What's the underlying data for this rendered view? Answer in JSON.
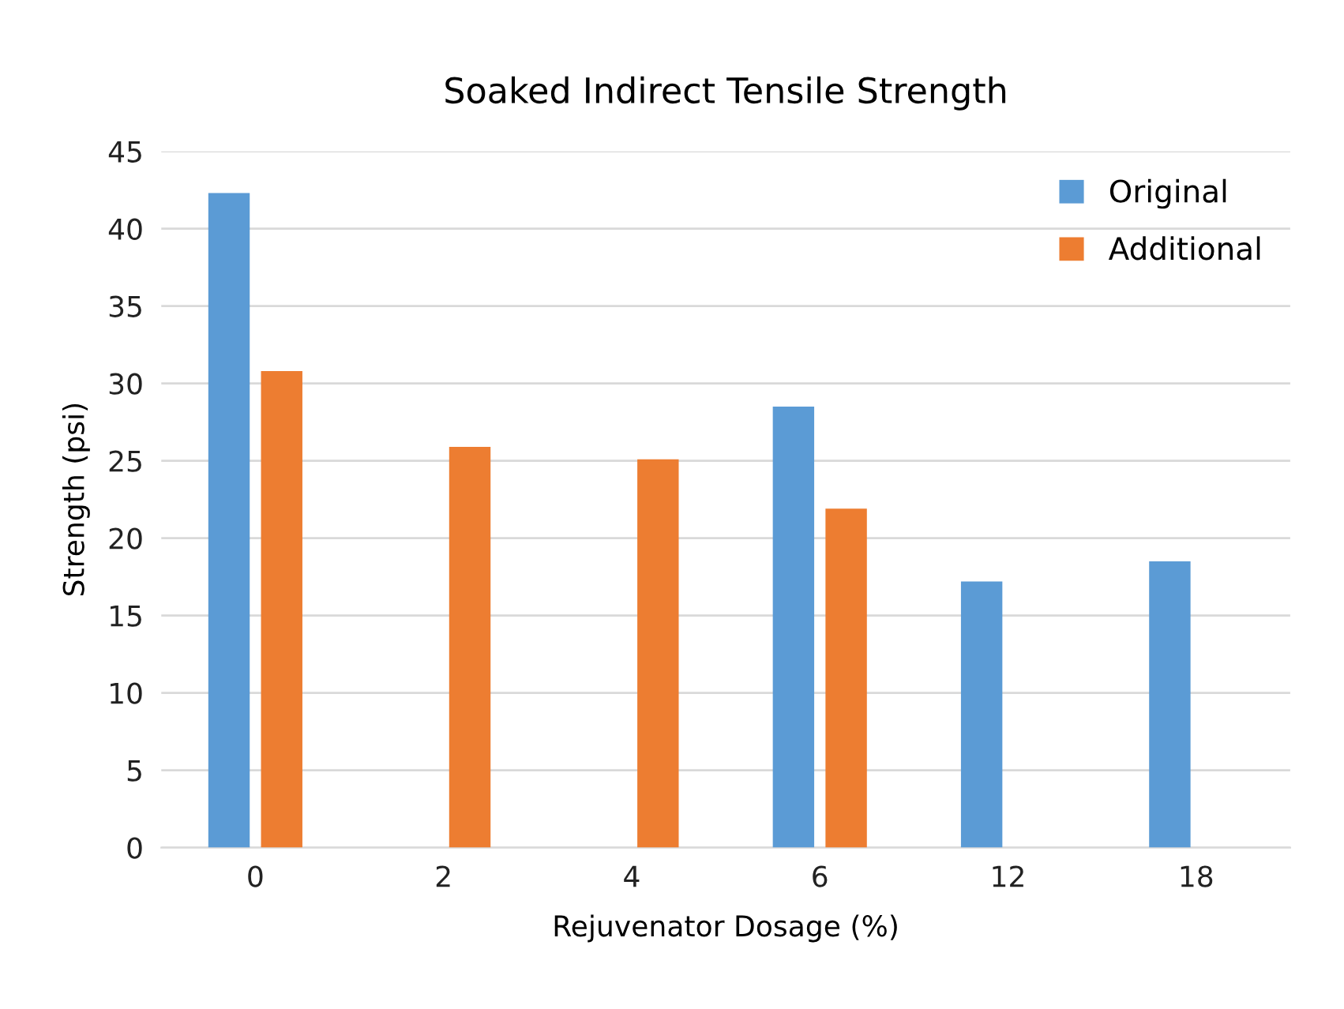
{
  "chart_data": {
    "type": "bar",
    "title": "Soaked Indirect Tensile Strength",
    "xlabel": "Rejuvenator Dosage (%)",
    "ylabel": "Strength (psi)",
    "categories": [
      "0",
      "2",
      "4",
      "6",
      "12",
      "18"
    ],
    "series": [
      {
        "name": "Original",
        "color": "#5b9bd5",
        "values": [
          42.3,
          null,
          null,
          28.5,
          17.2,
          18.5
        ]
      },
      {
        "name": "Additional",
        "color": "#ed7d31",
        "values": [
          30.8,
          25.9,
          25.1,
          21.9,
          null,
          null
        ]
      }
    ],
    "ylim": [
      0,
      45
    ],
    "yticks": [
      0,
      5,
      10,
      15,
      20,
      25,
      30,
      35,
      40,
      45
    ],
    "grid": "y",
    "legend": "top right"
  }
}
